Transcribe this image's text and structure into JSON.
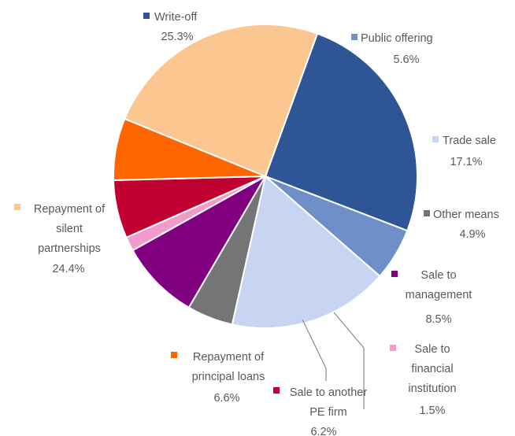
{
  "chart_data": {
    "type": "pie",
    "title": "",
    "slices": [
      {
        "label_lines": [
          "Write-off"
        ],
        "percent_label": "25.3%",
        "value": 25.3,
        "color": "#2E5596"
      },
      {
        "label_lines": [
          "Public offering"
        ],
        "percent_label": "5.6%",
        "value": 5.6,
        "color": "#6F8FC8"
      },
      {
        "label_lines": [
          "Trade sale"
        ],
        "percent_label": "17.1%",
        "value": 17.1,
        "color": "#C7D5F3"
      },
      {
        "label_lines": [
          "Other means"
        ],
        "percent_label": "4.9%",
        "value": 4.9,
        "color": "#757575"
      },
      {
        "label_lines": [
          "Sale to",
          "management"
        ],
        "percent_label": "8.5%",
        "value": 8.5,
        "color": "#800080"
      },
      {
        "label_lines": [
          "Sale to",
          "financial",
          "institution"
        ],
        "percent_label": "1.5%",
        "value": 1.5,
        "color": "#F29AC9"
      },
      {
        "label_lines": [
          "Sale to another",
          "PE firm"
        ],
        "percent_label": "6.2%",
        "value": 6.2,
        "color": "#C00030"
      },
      {
        "label_lines": [
          "Repayment of",
          "principal loans"
        ],
        "percent_label": "6.6%",
        "value": 6.6,
        "color": "#FF6600"
      },
      {
        "label_lines": [
          "Repayment of",
          "silent",
          "partnerships"
        ],
        "percent_label": "24.4%",
        "value": 24.4,
        "color": "#FCC690"
      }
    ]
  }
}
